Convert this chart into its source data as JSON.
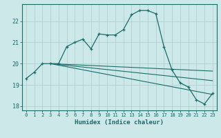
{
  "xlabel": "Humidex (Indice chaleur)",
  "bg_color": "#cce8e8",
  "grid_color": "#aacccc",
  "line_color": "#1a6b6b",
  "xlim": [
    -0.5,
    23.5
  ],
  "ylim": [
    17.8,
    22.8
  ],
  "xticks": [
    0,
    1,
    2,
    3,
    4,
    5,
    6,
    7,
    8,
    9,
    10,
    11,
    12,
    13,
    14,
    15,
    16,
    17,
    18,
    19,
    20,
    21,
    22,
    23
  ],
  "yticks": [
    18,
    19,
    20,
    21,
    22
  ],
  "line1_x": [
    0,
    1,
    2,
    3,
    4,
    5,
    6,
    7,
    8,
    9,
    10,
    11,
    12,
    13,
    14,
    15,
    16,
    17,
    18,
    19,
    20,
    21,
    22,
    23
  ],
  "line1_y": [
    19.3,
    19.6,
    20.0,
    20.0,
    20.0,
    20.8,
    21.0,
    21.15,
    20.7,
    21.4,
    21.35,
    21.35,
    21.6,
    22.3,
    22.5,
    22.5,
    22.35,
    20.8,
    19.7,
    19.1,
    18.9,
    18.3,
    18.1,
    18.6
  ],
  "line2_x": [
    3,
    23
  ],
  "line2_y": [
    20.0,
    19.65
  ],
  "line3_x": [
    3,
    23
  ],
  "line3_y": [
    20.0,
    19.2
  ],
  "line4_x": [
    3,
    23
  ],
  "line4_y": [
    20.0,
    18.55
  ]
}
